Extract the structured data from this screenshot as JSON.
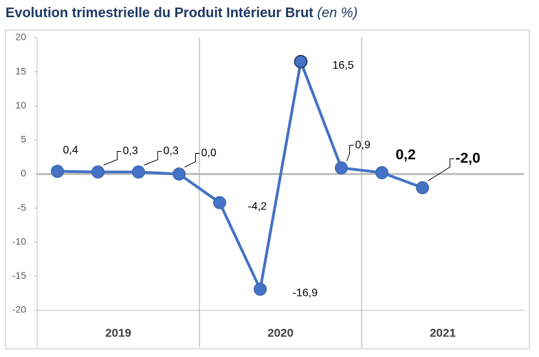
{
  "chart_data": {
    "type": "line",
    "title": "Evolution trimestrielle du Produit Intérieur Brut",
    "title_suffix": "(en %)",
    "categories": [
      null,
      null,
      null,
      null,
      null,
      null,
      null,
      null,
      null,
      null,
      null,
      null
    ],
    "year_groups": [
      "2019",
      "2020",
      "2021"
    ],
    "series": [
      {
        "name": null,
        "color": "#4472c4",
        "values": [
          0.4,
          0.3,
          0.3,
          0.0,
          -4.2,
          -16.9,
          16.5,
          0.9,
          0.2,
          -2.0,
          null,
          null
        ],
        "value_labels": [
          "0,4",
          "0,3",
          "0,3",
          "0,0",
          "-4,2",
          "-16,9",
          "16,5",
          "0,9",
          "0,2",
          "-2,0",
          null,
          null
        ],
        "label_styles": [
          "normal",
          "normal",
          "normal",
          "normal",
          "normal",
          "normal",
          "normal",
          "normal",
          "bold",
          "bold",
          null,
          null
        ]
      }
    ],
    "ylim": [
      -20,
      20
    ],
    "yticks": [
      -20,
      -15,
      -10,
      -5,
      0,
      5,
      10,
      15,
      20
    ]
  }
}
